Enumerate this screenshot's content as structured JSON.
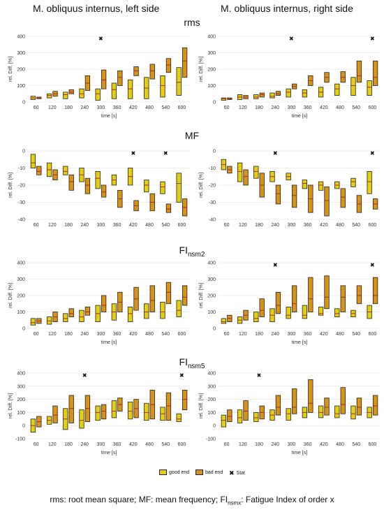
{
  "columns": {
    "left": "M. obliquus internus, left side",
    "right": "M. obliquus internus, right side"
  },
  "rows": [
    {
      "main": "rms",
      "sub": ""
    },
    {
      "main": "MF",
      "sub": ""
    },
    {
      "main": "FI",
      "sub": "nsm2"
    },
    {
      "main": "FI",
      "sub": "nsm5"
    }
  ],
  "legend": {
    "good_end": "good end",
    "bad_end": "bad end",
    "stat": "Stat"
  },
  "caption": {
    "part1": "rms: root mean square; MF: mean frequency; FI",
    "sub": "nsmx",
    "part2": ": Fatigue Index of order x"
  },
  "colors": {
    "good": "#e3cf10",
    "bad": "#d69318",
    "median": "#b42418",
    "outline": "#222222",
    "grid": "#dddddd"
  },
  "chart_data": [
    {
      "type": "box",
      "panel": "rms-left",
      "xlabel": "time [s]",
      "ylabel": "rel. Diff. [%]",
      "x": [
        60,
        120,
        180,
        240,
        300,
        360,
        420,
        480,
        540,
        600
      ],
      "ylim": [
        0,
        400
      ],
      "yticks": [
        0,
        100,
        200,
        300,
        400
      ],
      "good": [
        [
          15,
          35,
          25
        ],
        [
          25,
          50,
          40
        ],
        [
          20,
          60,
          45
        ],
        [
          25,
          80,
          50
        ],
        [
          10,
          80,
          50
        ],
        [
          20,
          115,
          75
        ],
        [
          20,
          135,
          80
        ],
        [
          20,
          150,
          85
        ],
        [
          30,
          160,
          100
        ],
        [
          40,
          210,
          120
        ]
      ],
      "bad": [
        [
          20,
          30,
          25
        ],
        [
          35,
          65,
          50
        ],
        [
          50,
          75,
          60
        ],
        [
          70,
          160,
          115
        ],
        [
          80,
          195,
          135
        ],
        [
          100,
          190,
          150
        ],
        [
          160,
          215,
          190
        ],
        [
          140,
          230,
          190
        ],
        [
          180,
          265,
          225
        ],
        [
          150,
          330,
          250
        ]
      ],
      "stat": [
        300
      ]
    },
    {
      "type": "box",
      "panel": "rms-right",
      "xlabel": "time [s]",
      "ylabel": "rel. Diff. [%]",
      "x": [
        60,
        120,
        180,
        240,
        300,
        360,
        420,
        480,
        540,
        600
      ],
      "ylim": [
        0,
        400
      ],
      "yticks": [
        0,
        100,
        200,
        300,
        400
      ],
      "good": [
        [
          10,
          25,
          20
        ],
        [
          15,
          45,
          30
        ],
        [
          20,
          45,
          30
        ],
        [
          25,
          55,
          35
        ],
        [
          30,
          80,
          60
        ],
        [
          30,
          75,
          55
        ],
        [
          30,
          90,
          60
        ],
        [
          40,
          110,
          80
        ],
        [
          40,
          150,
          100
        ],
        [
          40,
          130,
          90
        ]
      ],
      "bad": [
        [
          15,
          25,
          20
        ],
        [
          20,
          40,
          30
        ],
        [
          30,
          55,
          45
        ],
        [
          40,
          65,
          50
        ],
        [
          80,
          110,
          95
        ],
        [
          100,
          160,
          130
        ],
        [
          120,
          180,
          150
        ],
        [
          120,
          185,
          150
        ],
        [
          120,
          250,
          160
        ],
        [
          100,
          250,
          150
        ]
      ],
      "stat": [
        300,
        600
      ]
    },
    {
      "type": "box",
      "panel": "mf-left",
      "xlabel": "",
      "ylabel": "rel. Diff. [%]",
      "x": [
        60,
        120,
        180,
        240,
        300,
        360,
        420,
        480,
        540,
        600
      ],
      "ylim": [
        -40,
        0
      ],
      "yticks": [
        -40,
        -30,
        -20,
        -10,
        0
      ],
      "good": [
        [
          -10,
          -2,
          -7
        ],
        [
          -15,
          -7,
          -11
        ],
        [
          -14,
          -9,
          -12
        ],
        [
          -18,
          -10,
          -14
        ],
        [
          -22,
          -12,
          -16
        ],
        [
          -20,
          -14,
          -17
        ],
        [
          -20,
          -10,
          -15
        ],
        [
          -24,
          -17,
          -20
        ],
        [
          -25,
          -18,
          -21
        ],
        [
          -30,
          -13,
          -19
        ]
      ],
      "bad": [
        [
          -14,
          -9,
          -12
        ],
        [
          -17,
          -11,
          -14
        ],
        [
          -23,
          -14,
          -18
        ],
        [
          -25,
          -16,
          -20
        ],
        [
          -27,
          -20,
          -24
        ],
        [
          -33,
          -23,
          -28
        ],
        [
          -35,
          -29,
          -32
        ],
        [
          -35,
          -25,
          -30
        ],
        [
          -36,
          -31,
          -34
        ],
        [
          -38,
          -28,
          -33
        ]
      ],
      "stat": [
        420,
        540
      ]
    },
    {
      "type": "box",
      "panel": "mf-right",
      "xlabel": "",
      "ylabel": "rel. Diff. [%]",
      "x": [
        60,
        120,
        180,
        240,
        300,
        360,
        420,
        480,
        540,
        600
      ],
      "ylim": [
        -40,
        0
      ],
      "yticks": [
        -40,
        -30,
        -20,
        -10,
        0
      ],
      "good": [
        [
          -11,
          -5,
          -8
        ],
        [
          -18,
          -7,
          -12
        ],
        [
          -16,
          -9,
          -12
        ],
        [
          -18,
          -12,
          -15
        ],
        [
          -17,
          -13,
          -15
        ],
        [
          -22,
          -17,
          -19
        ],
        [
          -23,
          -18,
          -20
        ],
        [
          -22,
          -18,
          -20
        ],
        [
          -21,
          -16,
          -18
        ],
        [
          -25,
          -12,
          -18
        ]
      ],
      "bad": [
        [
          -13,
          -9,
          -11
        ],
        [
          -20,
          -11,
          -15
        ],
        [
          -27,
          -13,
          -20
        ],
        [
          -31,
          -20,
          -25
        ],
        [
          -33,
          -20,
          -26
        ],
        [
          -36,
          -20,
          -28
        ],
        [
          -38,
          -21,
          -29
        ],
        [
          -33,
          -22,
          -27
        ],
        [
          -36,
          -26,
          -31
        ],
        [
          -34,
          -28,
          -31
        ]
      ],
      "stat": [
        240,
        600
      ]
    },
    {
      "type": "box",
      "panel": "fi2-left",
      "xlabel": "time [s]",
      "ylabel": "rel. Diff. [%]",
      "x": [
        60,
        120,
        180,
        240,
        300,
        360,
        420,
        480,
        540,
        600
      ],
      "ylim": [
        0,
        400
      ],
      "yticks": [
        0,
        100,
        200,
        300,
        400
      ],
      "good": [
        [
          20,
          60,
          35
        ],
        [
          25,
          70,
          45
        ],
        [
          40,
          90,
          60
        ],
        [
          40,
          110,
          70
        ],
        [
          40,
          140,
          90
        ],
        [
          50,
          150,
          100
        ],
        [
          40,
          130,
          90
        ],
        [
          60,
          150,
          100
        ],
        [
          60,
          160,
          100
        ],
        [
          70,
          170,
          110
        ]
      ],
      "bad": [
        [
          30,
          60,
          45
        ],
        [
          40,
          100,
          70
        ],
        [
          70,
          120,
          90
        ],
        [
          80,
          130,
          100
        ],
        [
          100,
          200,
          140
        ],
        [
          100,
          220,
          160
        ],
        [
          110,
          250,
          180
        ],
        [
          100,
          260,
          170
        ],
        [
          150,
          280,
          220
        ],
        [
          140,
          260,
          190
        ]
      ],
      "stat": []
    },
    {
      "type": "box",
      "panel": "fi2-right",
      "xlabel": "time [s]",
      "ylabel": "rel. Diff. [%]",
      "x": [
        60,
        120,
        180,
        240,
        300,
        360,
        420,
        480,
        540,
        600
      ],
      "ylim": [
        0,
        400
      ],
      "yticks": [
        0,
        100,
        200,
        300,
        400
      ],
      "good": [
        [
          30,
          60,
          40
        ],
        [
          30,
          70,
          50
        ],
        [
          40,
          100,
          60
        ],
        [
          40,
          120,
          80
        ],
        [
          60,
          130,
          80
        ],
        [
          60,
          140,
          80
        ],
        [
          80,
          130,
          90
        ],
        [
          70,
          120,
          90
        ],
        [
          70,
          110,
          90
        ],
        [
          60,
          140,
          100
        ]
      ],
      "bad": [
        [
          40,
          80,
          60
        ],
        [
          50,
          110,
          80
        ],
        [
          70,
          180,
          110
        ],
        [
          90,
          220,
          140
        ],
        [
          100,
          260,
          150
        ],
        [
          100,
          310,
          180
        ],
        [
          120,
          320,
          190
        ],
        [
          100,
          260,
          190
        ],
        [
          150,
          260,
          200
        ],
        [
          150,
          310,
          200
        ]
      ],
      "stat": [
        240,
        600
      ]
    },
    {
      "type": "box",
      "panel": "fi5-left",
      "xlabel": "time [s]",
      "ylabel": "rel. Diff. [%]",
      "x": [
        60,
        120,
        180,
        240,
        300,
        360,
        420,
        480,
        540,
        600
      ],
      "ylim": [
        -100,
        400
      ],
      "yticks": [
        -100,
        0,
        100,
        200,
        300,
        400
      ],
      "good": [
        [
          -50,
          50,
          0
        ],
        [
          10,
          70,
          40
        ],
        [
          -30,
          130,
          50
        ],
        [
          -20,
          120,
          40
        ],
        [
          40,
          150,
          100
        ],
        [
          60,
          190,
          110
        ],
        [
          50,
          180,
          110
        ],
        [
          40,
          170,
          100
        ],
        [
          40,
          140,
          90
        ],
        [
          30,
          90,
          50
        ]
      ],
      "bad": [
        [
          -10,
          70,
          30
        ],
        [
          20,
          150,
          80
        ],
        [
          20,
          230,
          130
        ],
        [
          30,
          230,
          130
        ],
        [
          50,
          160,
          110
        ],
        [
          110,
          210,
          160
        ],
        [
          60,
          200,
          130
        ],
        [
          50,
          270,
          160
        ],
        [
          40,
          250,
          150
        ],
        [
          120,
          270,
          200
        ]
      ],
      "stat": [
        240,
        600
      ]
    },
    {
      "type": "box",
      "panel": "fi5-right",
      "xlabel": "time [s]",
      "ylabel": "rel. Diff. [%]",
      "x": [
        60,
        120,
        180,
        240,
        300,
        360,
        420,
        480,
        540,
        600
      ],
      "ylim": [
        -100,
        400
      ],
      "yticks": [
        -100,
        0,
        100,
        200,
        300,
        400
      ],
      "good": [
        [
          -10,
          80,
          40
        ],
        [
          20,
          120,
          60
        ],
        [
          30,
          100,
          60
        ],
        [
          40,
          120,
          80
        ],
        [
          40,
          130,
          90
        ],
        [
          60,
          140,
          100
        ],
        [
          60,
          150,
          100
        ],
        [
          60,
          150,
          90
        ],
        [
          50,
          150,
          90
        ],
        [
          60,
          140,
          100
        ]
      ],
      "bad": [
        [
          30,
          120,
          70
        ],
        [
          40,
          190,
          110
        ],
        [
          50,
          150,
          100
        ],
        [
          80,
          230,
          140
        ],
        [
          90,
          280,
          140
        ],
        [
          100,
          350,
          170
        ],
        [
          80,
          210,
          140
        ],
        [
          90,
          290,
          160
        ],
        [
          80,
          210,
          140
        ],
        [
          80,
          230,
          150
        ]
      ],
      "stat": [
        180
      ]
    }
  ]
}
